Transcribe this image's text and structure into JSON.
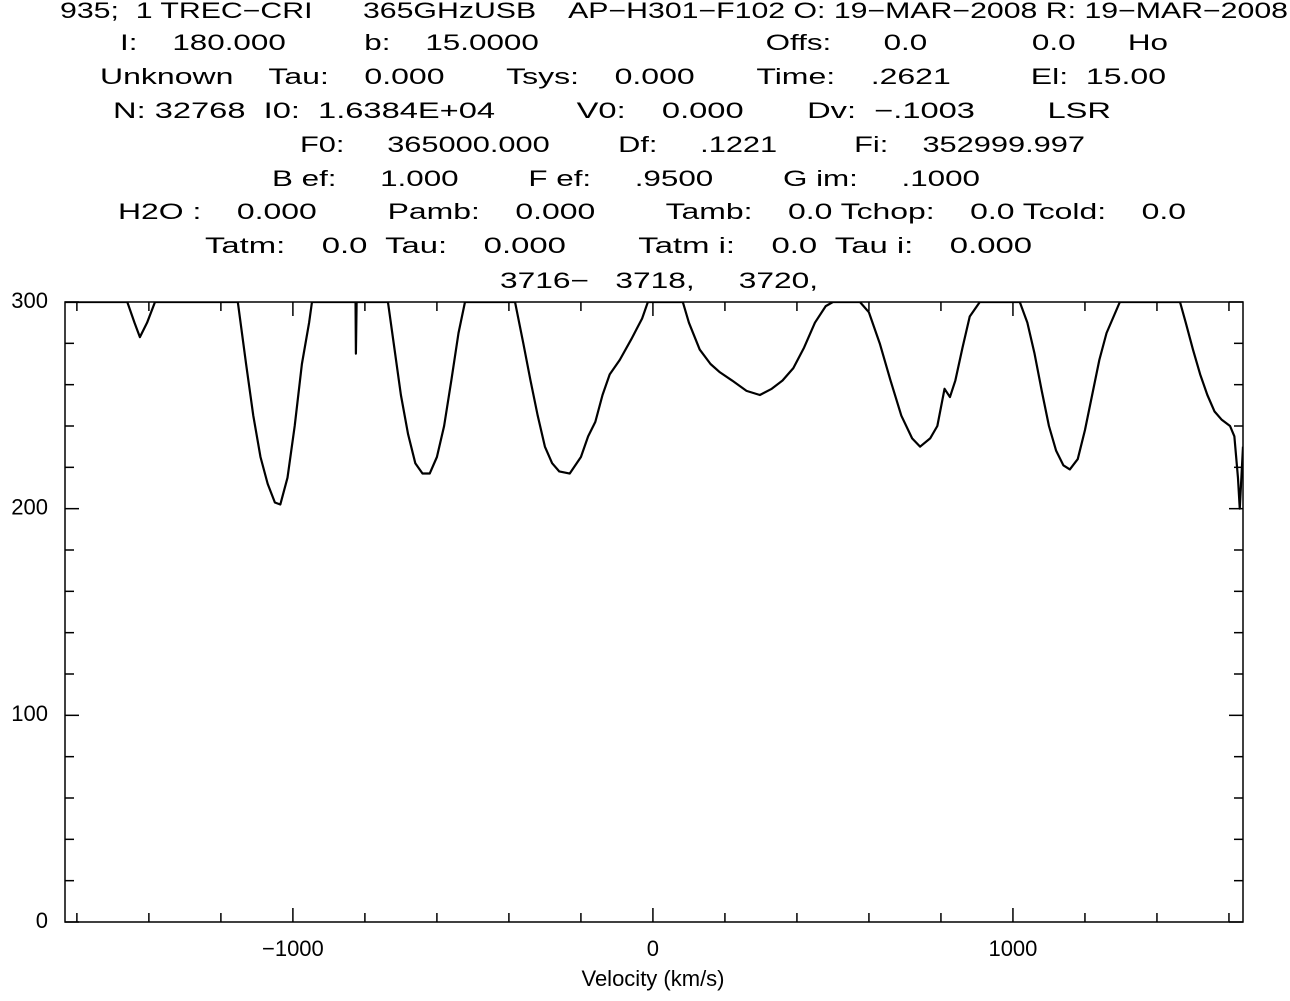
{
  "chart_data": {
    "type": "line",
    "header": [
      "935;  1 TREC−CRI      365GHzUSB    AP−H301−F102 O: 19−MAR−2008 R: 19−MAR−2008",
      "I:    180.000         b:    15.0000                          Offs:      0.0            0.0      Ho",
      "Unknown    Tau:    0.000       Tsys:    0.000       Time:    .2621         El:  15.00",
      "N: 32768  I0:  1.6384E+04         V0:    0.000       Dv:  −.1003        LSR",
      "F0:     365000.000        Df:     .1221         Fi:    352999.997",
      "B ef:     1.000        F ef:     .9500        G im:     .1000",
      "H2O :    0.000        Pamb:    0.000        Tamb:    0.0 Tchop:    0.0 Tcold:    0.0",
      "Tatm:    0.0  Tau:    0.000        Tatm i:    0.0  Tau i:    0.000",
      "3716−   3718,     3720,"
    ],
    "x_label": "Velocity (km/s)",
    "xlim": [
      -1633,
      1639
    ],
    "ylim": [
      0,
      300
    ],
    "xticks": [
      {
        "value": -1000,
        "label": "−1000"
      },
      0,
      1000
    ],
    "xminorticks": [
      -1600,
      -1400,
      -1200,
      -800,
      -600,
      -400,
      -200,
      200,
      400,
      600,
      800,
      1200,
      1400,
      1600
    ],
    "yticks": [
      0,
      100,
      200,
      300
    ],
    "yminorticks": [
      20,
      40,
      60,
      80,
      120,
      140,
      160,
      180,
      220,
      240,
      260,
      280
    ],
    "x": [
      -1633,
      -1460,
      -1440,
      -1425,
      -1405,
      -1383,
      -1153,
      -1130,
      -1110,
      -1090,
      -1070,
      -1050,
      -1035,
      -1015,
      -995,
      -975,
      -955,
      -947,
      -840,
      -826,
      -825,
      -823,
      -736,
      -720,
      -700,
      -680,
      -660,
      -640,
      -620,
      -600,
      -580,
      -560,
      -540,
      -522,
      -383,
      -360,
      -340,
      -320,
      -300,
      -280,
      -260,
      -231,
      -200,
      -180,
      -160,
      -140,
      -120,
      -92,
      -60,
      -30,
      -14,
      83,
      100,
      130,
      160,
      186,
      220,
      260,
      297,
      330,
      360,
      390,
      420,
      450,
      480,
      500,
      575,
      600,
      630,
      660,
      690,
      720,
      742,
      770,
      790,
      810,
      825,
      840,
      860,
      880,
      908,
      1019,
      1040,
      1060,
      1080,
      1100,
      1120,
      1140,
      1158,
      1180,
      1200,
      1220,
      1240,
      1260,
      1297,
      1464,
      1480,
      1500,
      1520,
      1540,
      1560,
      1580,
      1603,
      1615,
      1625,
      1630,
      1639
    ],
    "series": [
      {
        "color": "#000000",
        "values": [
          300,
          300,
          290,
          283,
          290,
          300,
          300,
          270,
          245,
          225,
          212,
          203,
          202,
          215,
          240,
          270,
          290,
          300,
          300,
          300,
          275,
          300,
          300,
          280,
          255,
          236,
          222,
          217,
          217,
          225,
          240,
          262,
          285,
          300,
          300,
          280,
          262,
          245,
          230,
          222,
          218,
          217,
          225,
          235,
          242,
          255,
          265,
          272,
          282,
          292,
          300,
          300,
          290,
          277,
          270,
          266,
          262,
          257,
          255,
          258,
          262,
          268,
          278,
          290,
          298,
          300,
          300,
          295,
          280,
          262,
          245,
          234,
          230,
          234,
          240,
          258,
          254,
          262,
          278,
          293,
          300,
          300,
          290,
          275,
          257,
          240,
          228,
          221,
          219,
          224,
          238,
          255,
          272,
          285,
          300,
          300,
          290,
          277,
          265,
          255,
          247,
          243,
          240,
          235,
          215,
          200,
          230
        ]
      }
    ]
  }
}
